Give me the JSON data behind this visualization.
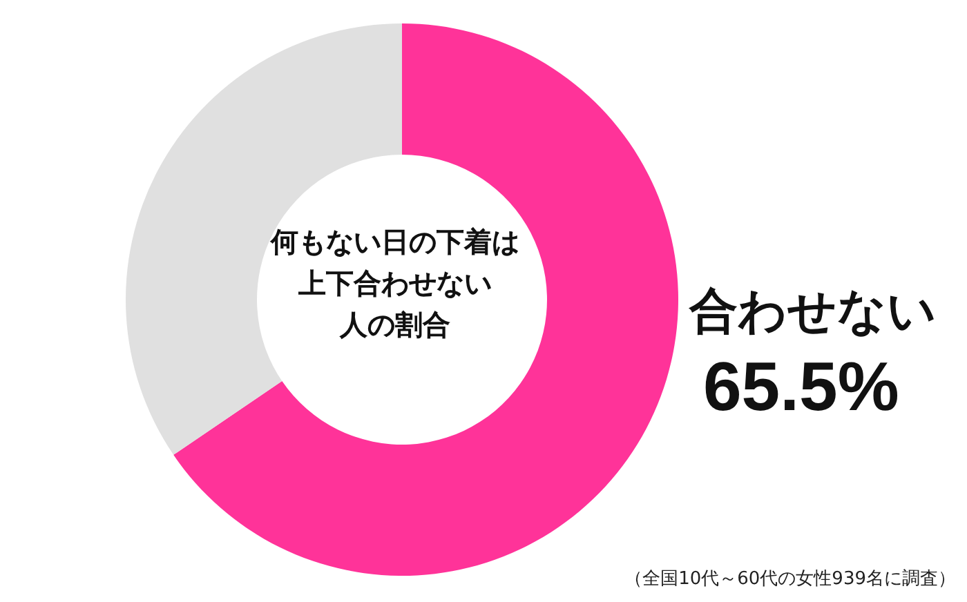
{
  "chart_data": {
    "type": "donut",
    "title": "何もない日の下着は上下合わせない人の割合",
    "categories": [
      "合わせない",
      null
    ],
    "values": [
      65.5,
      34.5
    ],
    "colors": [
      "#ff3399",
      "#e0e0e0"
    ],
    "value_labels": [
      "65.5%",
      null
    ],
    "annotations": [
      "（全国10代～60代の女性939名に調査）"
    ]
  }
}
